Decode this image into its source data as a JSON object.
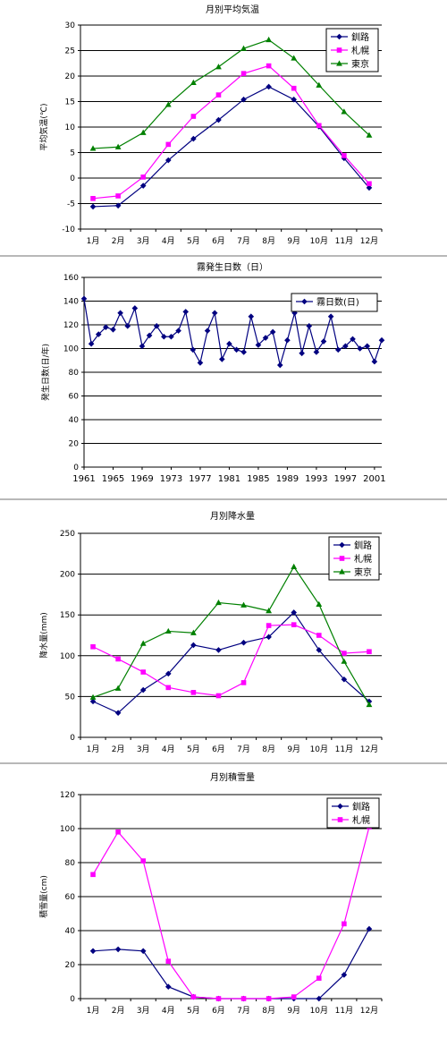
{
  "chart_data": [
    {
      "type": "line",
      "title": "月別平均気温",
      "ylabel": "平均気温(℃)",
      "xlabel": "",
      "ylim": [
        -10,
        30
      ],
      "yticks": [
        -10,
        -5,
        0,
        5,
        10,
        15,
        20,
        25,
        30
      ],
      "categories": [
        "1月",
        "2月",
        "3月",
        "4月",
        "5月",
        "6月",
        "7月",
        "8月",
        "9月",
        "10月",
        "11月",
        "12月"
      ],
      "grid": true,
      "legend": "top-right",
      "series": [
        {
          "name": "釧路",
          "color": "#000080",
          "marker": "diamond",
          "values": [
            -5.6,
            -5.4,
            -1.5,
            3.5,
            7.7,
            11.4,
            15.4,
            17.9,
            15.4,
            10.1,
            3.9,
            -1.9
          ]
        },
        {
          "name": "札幌",
          "color": "#ff00ff",
          "marker": "square",
          "values": [
            -4.0,
            -3.5,
            0.2,
            6.6,
            12.1,
            16.3,
            20.5,
            22.0,
            17.6,
            10.3,
            4.4,
            -1.1
          ]
        },
        {
          "name": "東京",
          "color": "#008000",
          "marker": "triangle",
          "values": [
            5.8,
            6.1,
            8.9,
            14.4,
            18.7,
            21.8,
            25.4,
            27.1,
            23.5,
            18.2,
            13.0,
            8.4
          ]
        }
      ]
    },
    {
      "type": "line",
      "title": "霧発生日数（日）",
      "ylabel": "発生日数(日/年)",
      "xlabel": "",
      "ylim": [
        0,
        160
      ],
      "yticks": [
        0,
        20,
        40,
        60,
        80,
        100,
        120,
        140,
        160
      ],
      "x": [
        1961,
        1962,
        1963,
        1964,
        1965,
        1966,
        1967,
        1968,
        1969,
        1970,
        1971,
        1972,
        1973,
        1974,
        1975,
        1976,
        1977,
        1978,
        1979,
        1980,
        1981,
        1982,
        1983,
        1984,
        1985,
        1986,
        1987,
        1988,
        1989,
        1990,
        1991,
        1992,
        1993,
        1994,
        1995,
        1996,
        1997,
        1998,
        1999,
        2000,
        2001,
        2002
      ],
      "xticks": [
        1961,
        1965,
        1969,
        1973,
        1977,
        1981,
        1985,
        1989,
        1993,
        1997,
        2001
      ],
      "grid": true,
      "legend": "top-right",
      "series": [
        {
          "name": "霧日数(日)",
          "color": "#000080",
          "marker": "diamond",
          "values": [
            142,
            104,
            112,
            118,
            116,
            130,
            119,
            134,
            102,
            111,
            119,
            110,
            110,
            115,
            131,
            99,
            88,
            115,
            130,
            91,
            104,
            99,
            97,
            127,
            103,
            109,
            114,
            86,
            107,
            130,
            96,
            119,
            97,
            106,
            127,
            99,
            102,
            108,
            100,
            102,
            89,
            107
          ]
        }
      ]
    },
    {
      "type": "line",
      "title": "月別降水量",
      "ylabel": "降水量(mm)",
      "xlabel": "",
      "ylim": [
        0,
        250
      ],
      "yticks": [
        0,
        50,
        100,
        150,
        200,
        250
      ],
      "categories": [
        "1月",
        "2月",
        "3月",
        "4月",
        "5月",
        "6月",
        "7月",
        "8月",
        "9月",
        "10月",
        "11月",
        "12月"
      ],
      "grid": true,
      "legend": "top-right",
      "series": [
        {
          "name": "釧路",
          "color": "#000080",
          "marker": "diamond",
          "values": [
            44,
            30,
            58,
            78,
            113,
            107,
            116,
            123,
            153,
            107,
            71,
            44
          ]
        },
        {
          "name": "札幌",
          "color": "#ff00ff",
          "marker": "square",
          "values": [
            111,
            96,
            80,
            61,
            55,
            51,
            67,
            137,
            138,
            125,
            103,
            105
          ]
        },
        {
          "name": "東京",
          "color": "#008000",
          "marker": "triangle",
          "values": [
            49,
            60,
            115,
            130,
            128,
            165,
            162,
            155,
            209,
            163,
            93,
            40
          ]
        }
      ]
    },
    {
      "type": "line",
      "title": "月別積雪量",
      "ylabel": "積雪量(cm)",
      "xlabel": "",
      "ylim": [
        0,
        120
      ],
      "yticks": [
        0,
        20,
        40,
        60,
        80,
        100,
        120
      ],
      "categories": [
        "1月",
        "2月",
        "3月",
        "4月",
        "5月",
        "6月",
        "7月",
        "8月",
        "9月",
        "10月",
        "11月",
        "12月"
      ],
      "grid": true,
      "legend": "top-right",
      "series": [
        {
          "name": "釧路",
          "color": "#000080",
          "marker": "diamond",
          "values": [
            28,
            29,
            28,
            7,
            1,
            0,
            0,
            0,
            0,
            0,
            14,
            41
          ]
        },
        {
          "name": "札幌",
          "color": "#ff00ff",
          "marker": "square",
          "values": [
            73,
            98,
            81,
            22,
            1,
            0,
            0,
            0,
            1,
            12,
            44,
            101
          ]
        }
      ]
    }
  ]
}
